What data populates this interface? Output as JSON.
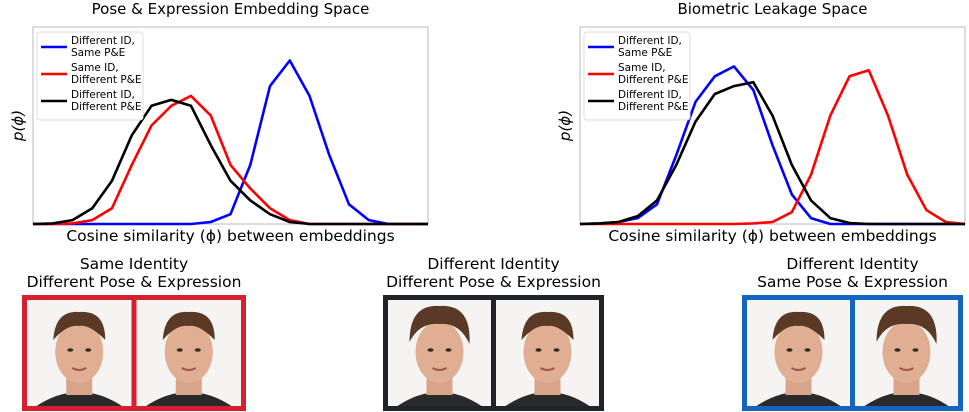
{
  "chart_data": [
    {
      "type": "line",
      "title": "Pose & Expression Embedding Space",
      "xlabel": "Cosine similarity (ϕ) between embeddings",
      "ylabel": "p(ϕ)",
      "xlim": [
        0,
        1
      ],
      "ylim": [
        0,
        1
      ],
      "legend": "upper left",
      "x": [
        0,
        0.05,
        0.1,
        0.15,
        0.2,
        0.25,
        0.3,
        0.35,
        0.4,
        0.45,
        0.5,
        0.55,
        0.6,
        0.65,
        0.7,
        0.75,
        0.8,
        0.85,
        0.9,
        0.95,
        1
      ],
      "series": [
        {
          "name": "Different ID,\nSame P&E",
          "color": "#0000ff",
          "values": [
            0,
            0,
            0,
            0,
            0,
            0,
            0,
            0,
            0,
            0.01,
            0.05,
            0.3,
            0.7,
            0.83,
            0.65,
            0.35,
            0.1,
            0.02,
            0,
            0,
            0
          ]
        },
        {
          "name": "Same ID,\nDifferent P&E",
          "color": "#ff0000",
          "values": [
            0,
            0,
            0.003,
            0.02,
            0.08,
            0.3,
            0.5,
            0.6,
            0.65,
            0.55,
            0.3,
            0.18,
            0.08,
            0.02,
            0,
            0,
            0,
            0,
            0,
            0,
            0
          ]
        },
        {
          "name": "Different ID,\nDifferent P&E",
          "color": "#000000",
          "values": [
            0,
            0.003,
            0.02,
            0.08,
            0.22,
            0.45,
            0.6,
            0.63,
            0.6,
            0.4,
            0.22,
            0.12,
            0.05,
            0.01,
            0,
            0,
            0,
            0,
            0,
            0,
            0
          ]
        }
      ]
    },
    {
      "type": "line",
      "title": "Biometric Leakage Space",
      "xlabel": "Cosine similarity (ϕ) between embeddings",
      "ylabel": "p(ϕ)",
      "xlim": [
        0,
        1
      ],
      "ylim": [
        0,
        1
      ],
      "legend": "upper left",
      "x": [
        0,
        0.05,
        0.1,
        0.15,
        0.2,
        0.25,
        0.3,
        0.35,
        0.4,
        0.45,
        0.5,
        0.55,
        0.6,
        0.65,
        0.7,
        0.75,
        0.8,
        0.85,
        0.9,
        0.95,
        1
      ],
      "series": [
        {
          "name": "Different ID,\nSame P&E",
          "color": "#0000ff",
          "values": [
            0,
            0.003,
            0.01,
            0.03,
            0.1,
            0.35,
            0.62,
            0.75,
            0.8,
            0.68,
            0.4,
            0.15,
            0.03,
            0,
            0,
            0,
            0,
            0,
            0,
            0,
            0
          ]
        },
        {
          "name": "Same ID,\nDifferent P&E",
          "color": "#ff0000",
          "values": [
            0,
            0,
            0,
            0,
            0,
            0,
            0,
            0,
            0,
            0.003,
            0.01,
            0.06,
            0.25,
            0.55,
            0.75,
            0.78,
            0.55,
            0.25,
            0.07,
            0.01,
            0
          ]
        },
        {
          "name": "Different ID,\nDifferent P&E",
          "color": "#000000",
          "values": [
            0,
            0.003,
            0.01,
            0.04,
            0.12,
            0.3,
            0.52,
            0.66,
            0.7,
            0.72,
            0.55,
            0.3,
            0.12,
            0.03,
            0.005,
            0,
            0,
            0,
            0,
            0,
            0
          ]
        }
      ]
    }
  ],
  "panels": [
    {
      "title": "Same Identity\nDifferent Pose & Expression",
      "border_color": "#d42030"
    },
    {
      "title": "Different Identity\nDifferent Pose & Expression",
      "border_color": "#1f2428"
    },
    {
      "title": "Different Identity\nSame Pose & Expression",
      "border_color": "#1565c0"
    }
  ]
}
